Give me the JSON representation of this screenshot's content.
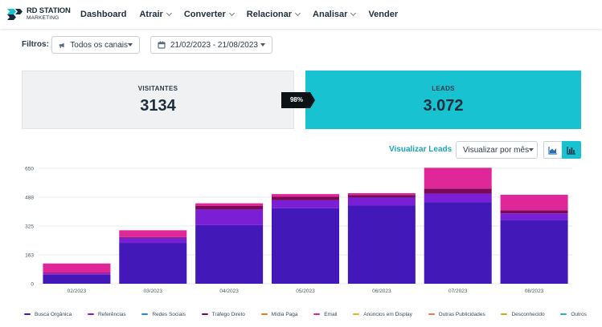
{
  "header": {
    "logo_title": "RD STATION",
    "logo_subtitle": "MARKETING",
    "nav": [
      {
        "label": "Dashboard",
        "dropdown": false
      },
      {
        "label": "Atrair",
        "dropdown": true
      },
      {
        "label": "Converter",
        "dropdown": true
      },
      {
        "label": "Relacionar",
        "dropdown": true
      },
      {
        "label": "Analisar",
        "dropdown": true
      },
      {
        "label": "Vender",
        "dropdown": false
      }
    ]
  },
  "filters": {
    "label": "Filtros:",
    "channel": "Todos os canais",
    "date_range": "21/02/2023 - 21/08/2023"
  },
  "metrics": {
    "visitors_label": "VISITANTES",
    "visitors_value": "3134",
    "conversion": "98%",
    "leads_label": "LEADS",
    "leads_value": "3.072"
  },
  "chart_controls": {
    "view_link": "Visualizar Leads",
    "period": "Visualizar por mês",
    "active_chart": "bar"
  },
  "colors": {
    "brand": "#18c2d0",
    "busca_organica": "#4318b8",
    "referencias": "#7b1fd6",
    "redes_sociais": "#1e88e5",
    "trafego_direto": "#7a0a57",
    "midia_paga": "#e8791f",
    "email": "#e02799",
    "anuncios_display": "#f2b21b",
    "outras_publicidades": "#f07a4a",
    "desconhecido": "#c3b214",
    "outros": "#1fb5aa"
  },
  "chart_data": {
    "type": "bar",
    "stacked": true,
    "categories": [
      "02/2023",
      "03/2023",
      "04/2023",
      "05/2023",
      "06/2023",
      "07/2023",
      "08/2023"
    ],
    "yticks": [
      "650",
      "488",
      "325",
      "163",
      "0"
    ],
    "ylim": [
      0,
      650
    ],
    "grid": true,
    "legend_position": "bottom",
    "series": [
      {
        "name": "Busca Orgânica",
        "color": "#4318b8",
        "values": [
          50,
          230,
          330,
          425,
          440,
          460,
          360
        ]
      },
      {
        "name": "Referências",
        "color": "#7b1fd6",
        "values": [
          8,
          28,
          88,
          45,
          45,
          48,
          36
        ]
      },
      {
        "name": "Redes Sociais",
        "color": "#1e88e5",
        "values": [
          0,
          0,
          0,
          0,
          0,
          0,
          0
        ]
      },
      {
        "name": "Tráfego Direto",
        "color": "#7a0a57",
        "values": [
          3,
          5,
          20,
          20,
          15,
          28,
          18
        ]
      },
      {
        "name": "Mídia Paga",
        "color": "#e8791f",
        "values": [
          0,
          0,
          0,
          0,
          0,
          0,
          0
        ]
      },
      {
        "name": "Email",
        "color": "#e02799",
        "values": [
          53,
          38,
          15,
          15,
          10,
          117,
          87
        ]
      },
      {
        "name": "Anúncios em Display",
        "color": "#f2b21b",
        "values": [
          0,
          0,
          0,
          0,
          0,
          0,
          0
        ]
      },
      {
        "name": "Outras Publicidades",
        "color": "#f07a4a",
        "values": [
          0,
          0,
          0,
          0,
          0,
          0,
          0
        ]
      },
      {
        "name": "Desconhecido",
        "color": "#c3b214",
        "values": [
          0,
          0,
          0,
          0,
          0,
          0,
          0
        ]
      },
      {
        "name": "Outros",
        "color": "#1fb5aa",
        "values": [
          0,
          0,
          0,
          0,
          0,
          0,
          0
        ]
      }
    ]
  }
}
